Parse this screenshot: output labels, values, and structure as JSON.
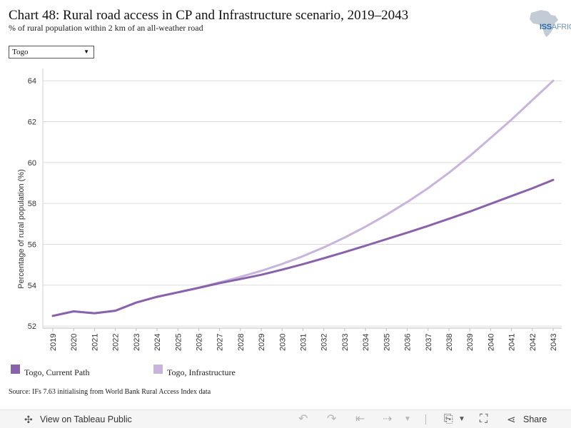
{
  "header": {
    "title": "Chart 48: Rural road access in CP and Infrastructure scenario, 2019–2043",
    "subtitle": "% of rural population within 2 km of an all-weather road",
    "logo_text": "ISS",
    "logo_suffix": "AFRICA"
  },
  "filter": {
    "selected": "Togo"
  },
  "chart_data": {
    "type": "line",
    "title": "Chart 48: Rural road access in CP and Infrastructure scenario, 2019–2043",
    "subtitle": "% of rural population within 2 km of an all-weather road",
    "xlabel": "",
    "ylabel": "Percentage of rural population (%)",
    "ylim": [
      51.9,
      64.6
    ],
    "yticks": [
      52,
      54,
      56,
      58,
      60,
      62,
      64
    ],
    "grid": true,
    "legend_position": "bottom-left",
    "x": [
      "2019",
      "2020",
      "2021",
      "2022",
      "2023",
      "2024",
      "2025",
      "2026",
      "2027",
      "2028",
      "2029",
      "2030",
      "2031",
      "2032",
      "2033",
      "2034",
      "2035",
      "2036",
      "2037",
      "2038",
      "2039",
      "2040",
      "2041",
      "2042",
      "2043"
    ],
    "series": [
      {
        "name": "Togo, Current Path",
        "color": "#8a62ac",
        "values": [
          52.5,
          52.72,
          52.63,
          52.75,
          53.15,
          53.43,
          53.65,
          53.87,
          54.1,
          54.3,
          54.51,
          54.76,
          55.03,
          55.32,
          55.62,
          55.93,
          56.25,
          56.57,
          56.9,
          57.25,
          57.6,
          57.98,
          58.36,
          58.74,
          59.15
        ]
      },
      {
        "name": "Togo, Infrastructure",
        "color": "#c8b4dc",
        "values": [
          52.5,
          52.72,
          52.63,
          52.75,
          53.15,
          53.43,
          53.65,
          53.88,
          54.14,
          54.41,
          54.7,
          55.04,
          55.42,
          55.85,
          56.33,
          56.86,
          57.44,
          58.07,
          58.75,
          59.5,
          60.32,
          61.2,
          62.1,
          63.05,
          64.0
        ]
      }
    ]
  },
  "source": "Source: IFs 7.63 initialising from World Bank Rural Access Index data",
  "toolbar": {
    "view_label": "View on Tableau Public",
    "share_label": "Share",
    "tableau_icon": "tableau-icon",
    "undo_icon": "undo-icon",
    "redo_icon": "redo-icon",
    "revert_icon": "revert-icon",
    "refresh_icon": "refresh-icon",
    "download_icon": "download-icon",
    "fullscreen_icon": "fullscreen-icon",
    "share_icon": "share-icon"
  }
}
